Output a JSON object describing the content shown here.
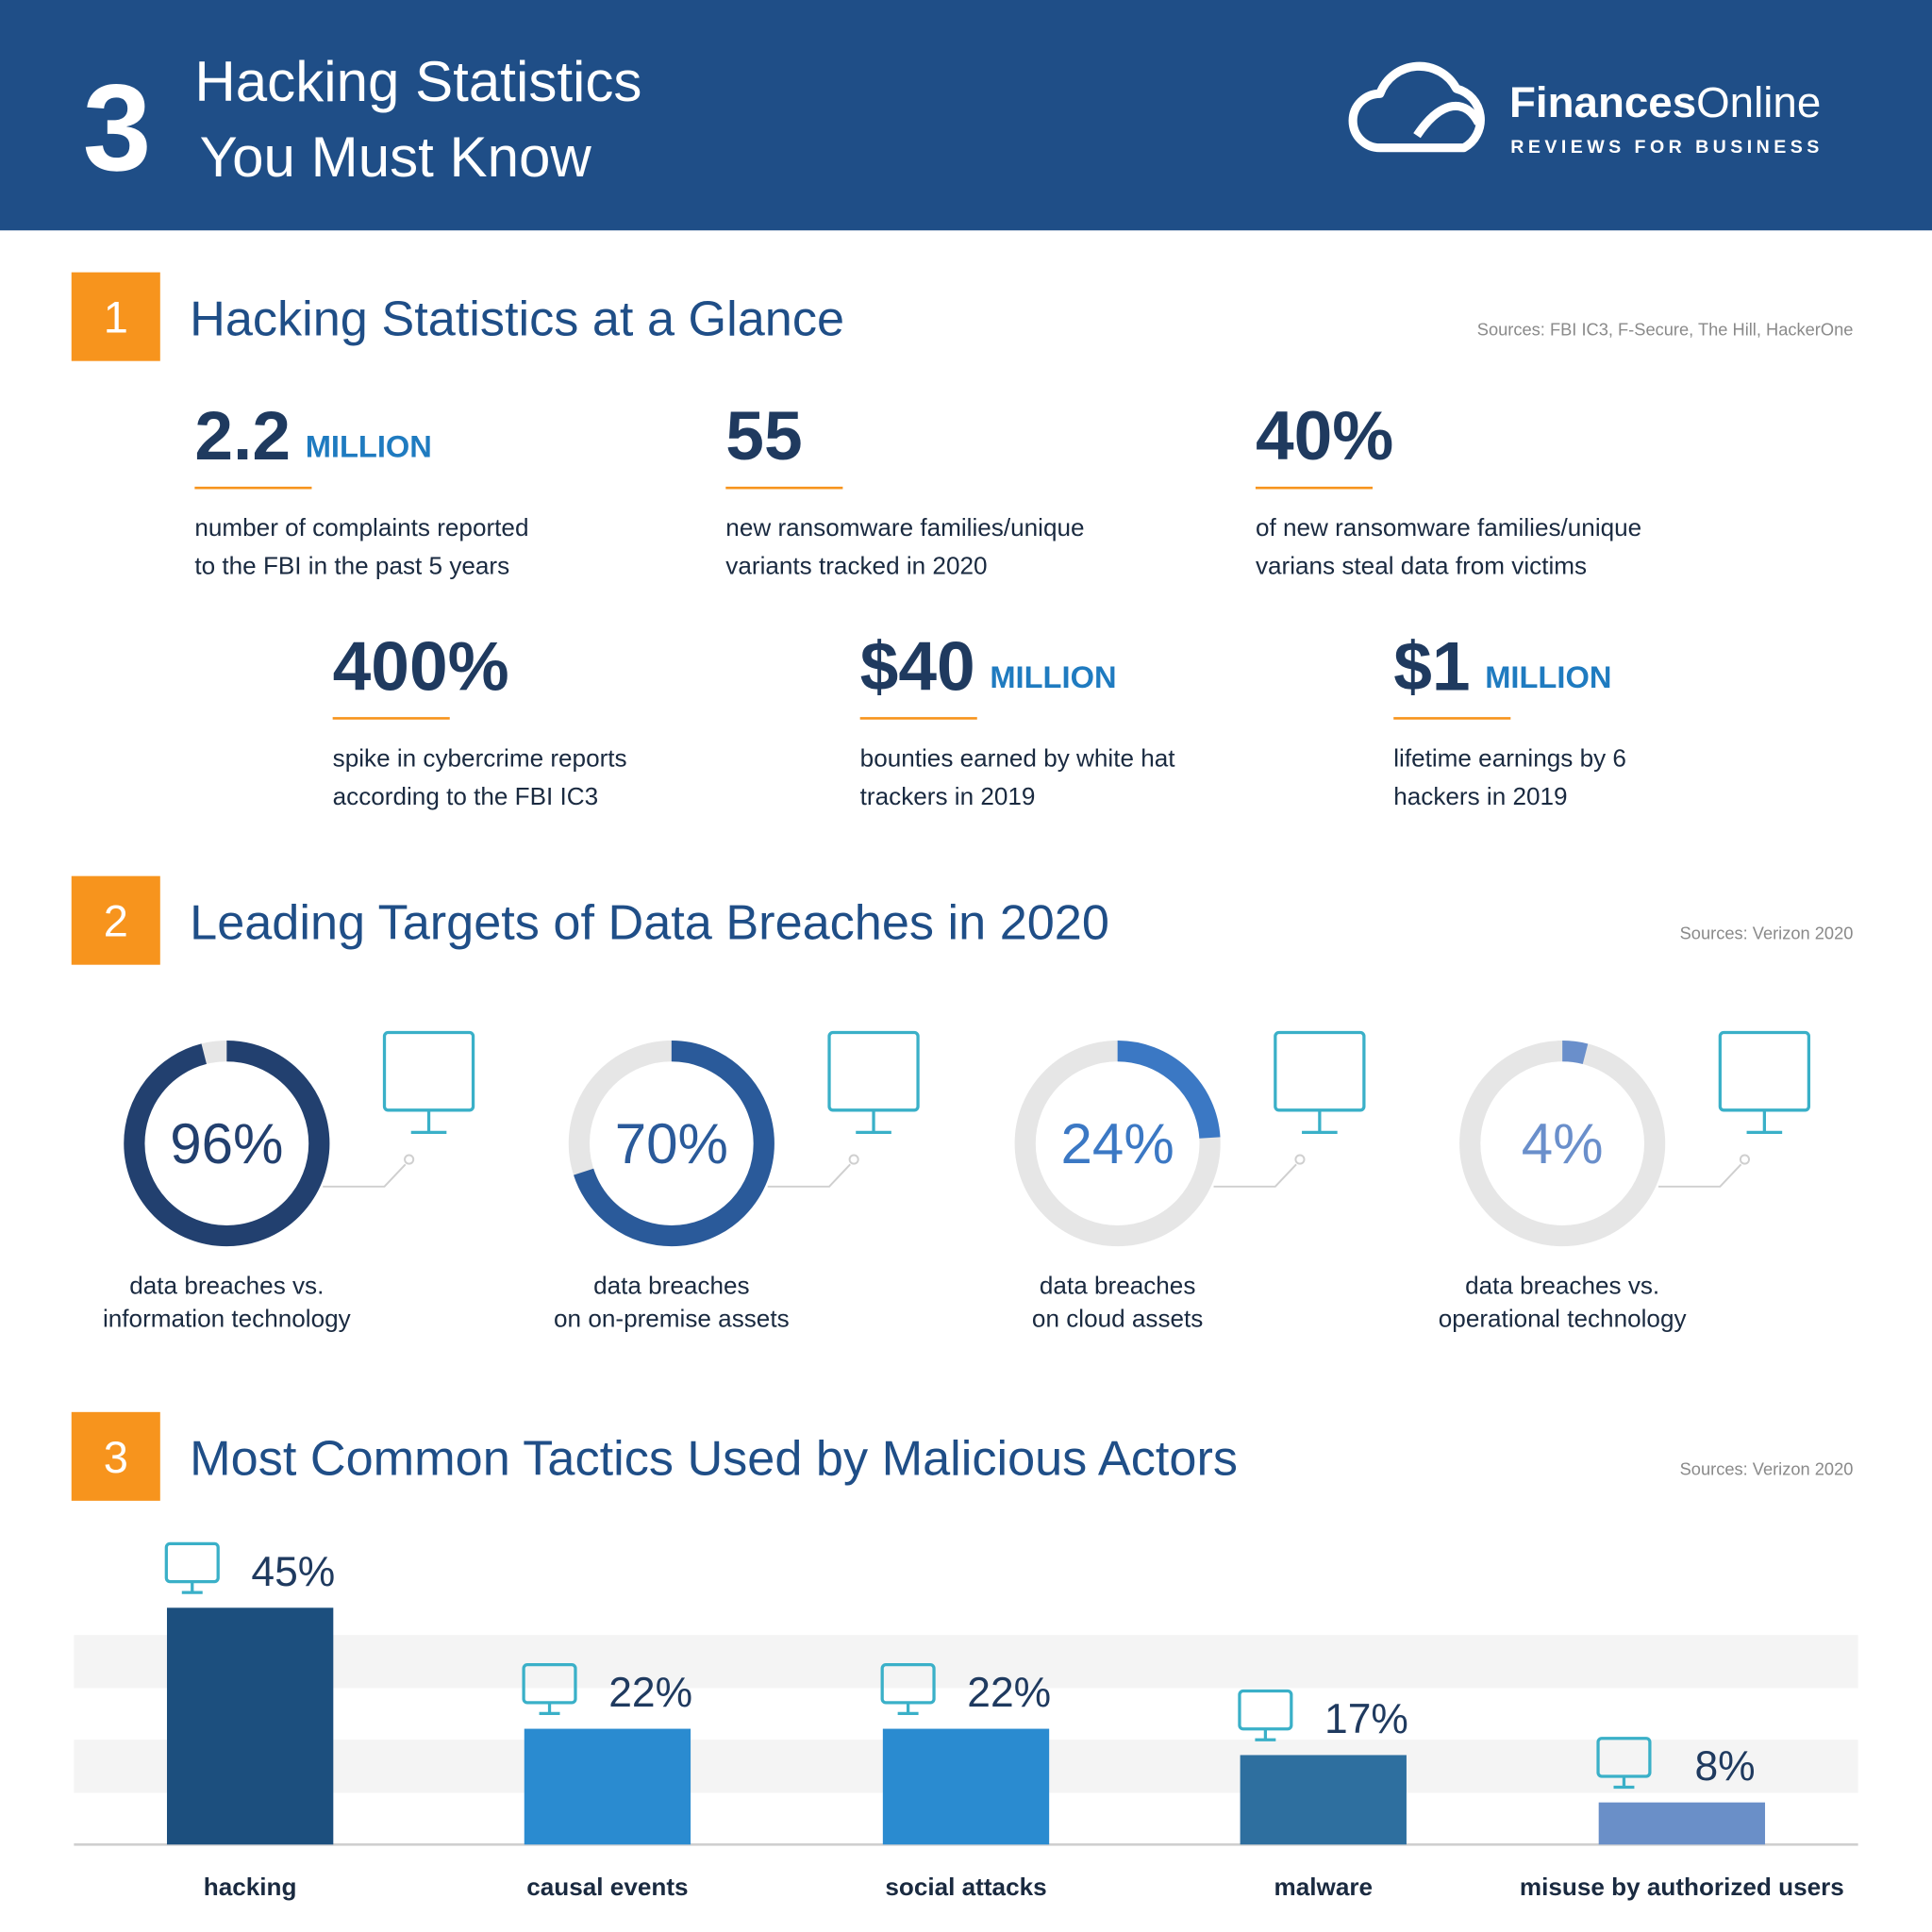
{
  "header": {
    "number": "3",
    "title_lines": [
      "Hacking Statistics",
      "You Must Know"
    ],
    "brand_bold": "Finances",
    "brand_light": "Online",
    "tagline": "REVIEWS FOR BUSINESS"
  },
  "section_1": {
    "number": "1",
    "title": "Hacking Statistics at a Glance",
    "source": "Sources: FBI IC3, F-Secure, The Hill, HackerOne",
    "stats": [
      {
        "figure": "2.2",
        "unit": "MILLION",
        "lines": [
          "number of complaints reported",
          "to the FBI in the past 5 years"
        ]
      },
      {
        "figure": "55",
        "lines": [
          "new ransomware families/unique",
          "variants tracked in 2020"
        ]
      },
      {
        "figure": "40%",
        "lines": [
          "of new ransomware families/unique",
          "varians steal data from victims"
        ]
      },
      {
        "figure": "400%",
        "lines": [
          "spike in cybercrime reports",
          "according to the FBI IC3"
        ]
      },
      {
        "figure": "$40",
        "unit": "MILLION",
        "lines": [
          "bounties earned by white hat",
          "trackers in 2019"
        ]
      },
      {
        "figure": "$1",
        "unit": "MILLION",
        "lines": [
          "lifetime earnings by 6",
          "hackers in 2019"
        ]
      }
    ]
  },
  "chart_data": [
    {
      "type": "donut",
      "number": "2",
      "title": "Leading Targets of Data Breaches in 2020",
      "source": "Sources: Verizon 2020",
      "categories": [
        [
          "data breaches vs.",
          "information technology"
        ],
        [
          "data breaches",
          "on on-premise assets"
        ],
        [
          "data breaches",
          "on cloud assets"
        ],
        [
          "data breaches vs.",
          "operational technology"
        ]
      ],
      "values": [
        96,
        70,
        24,
        4
      ],
      "value_labels": [
        "96%",
        "70%",
        "24%",
        "4%"
      ],
      "colors": [
        "#22406f",
        "#2a5a9a",
        "#3b78c4",
        "#6a8fcb"
      ]
    },
    {
      "type": "bar",
      "number": "3",
      "title": "Most Common Tactics Used by Malicious Actors",
      "source": "Sources: Verizon 2020",
      "categories": [
        "hacking",
        "causal events",
        "social attacks",
        "malware",
        "misuse by authorized users"
      ],
      "values": [
        45,
        22,
        22,
        17,
        8
      ],
      "value_labels": [
        "45%",
        "22%",
        "22%",
        "17%",
        "8%"
      ],
      "colors": [
        "#1c4f7e",
        "#2a8bd0",
        "#2a8bd0",
        "#2e6f9f",
        "#6a8fc8"
      ]
    }
  ]
}
